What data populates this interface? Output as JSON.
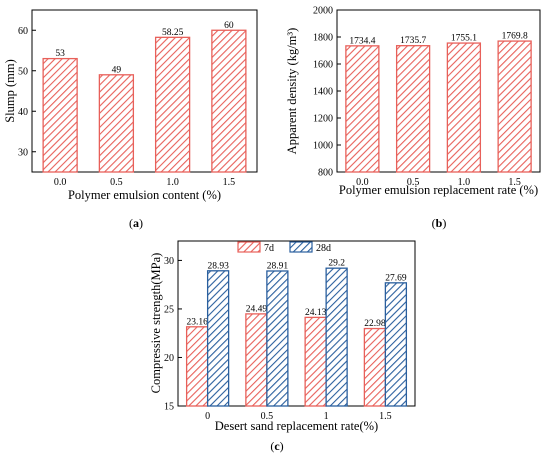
{
  "chart_data": [
    {
      "type": "bar",
      "panel_label": "a",
      "categories": [
        "0.0",
        "0.5",
        "1.0",
        "1.5"
      ],
      "values": [
        53,
        49,
        58.25,
        60
      ],
      "value_labels": [
        "53",
        "49",
        "58.25",
        "60"
      ],
      "xlabel": "Polymer emulsion content (%)",
      "ylabel": "Slump (mm)",
      "ylim": [
        25,
        65
      ],
      "yticks": [
        "30",
        "40",
        "50",
        "60"
      ],
      "grid": false,
      "colors": {
        "bar": "#e8605a"
      }
    },
    {
      "type": "bar",
      "panel_label": "b",
      "categories": [
        "0.0",
        "0.5",
        "1.0",
        "1.5"
      ],
      "values": [
        1734.4,
        1735.7,
        1755.1,
        1769.8
      ],
      "value_labels": [
        "1734.4",
        "1735.7",
        "1755.1",
        "1769.8"
      ],
      "xlabel": "Polymer emulsion replacement rate (%)",
      "ylabel": "Apparent density (kg/m³)",
      "ylim": [
        800,
        2000
      ],
      "yticks": [
        "800",
        "1000",
        "1200",
        "1400",
        "1600",
        "1800",
        "2000"
      ],
      "grid": false,
      "colors": {
        "bar": "#e8605a"
      }
    },
    {
      "type": "bar",
      "panel_label": "c",
      "categories": [
        "0",
        "0.5",
        "1",
        "1.5"
      ],
      "series": [
        {
          "name": "7d",
          "values": [
            23.16,
            24.49,
            24.13,
            22.98
          ],
          "value_labels": [
            "23.16",
            "24.49",
            "24.13",
            "22.98"
          ]
        },
        {
          "name": "28d",
          "values": [
            28.93,
            28.91,
            29.2,
            27.69
          ],
          "value_labels": [
            "28.93",
            "28.91",
            "29.2",
            "27.69"
          ]
        }
      ],
      "xlabel": "Desert sand replacement rate(%)",
      "ylabel": "Compressive strength(MPa)",
      "ylim": [
        15,
        32
      ],
      "yticks": [
        "15",
        "20",
        "25",
        "30"
      ],
      "legend": "top-center",
      "grid": false,
      "colors": {
        "7d": "#e8605a",
        "28d": "#2a5f9e"
      }
    }
  ]
}
